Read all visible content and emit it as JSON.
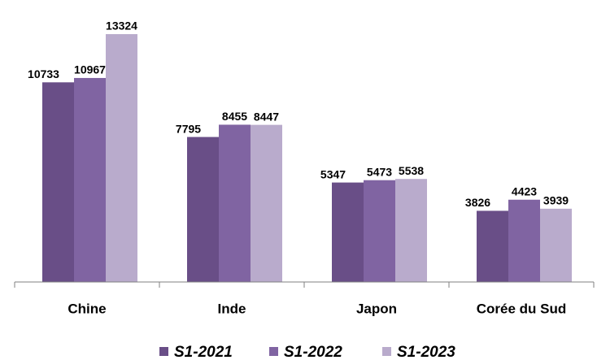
{
  "chart_data": {
    "type": "bar",
    "categories": [
      "Chine",
      "Inde",
      "Japon",
      "Corée du Sud"
    ],
    "series": [
      {
        "name": "S1-2021",
        "color": "#694e87",
        "values": [
          10733,
          7795,
          5347,
          3826
        ]
      },
      {
        "name": "S1-2022",
        "color": "#8064a2",
        "values": [
          10967,
          8455,
          5473,
          4423
        ]
      },
      {
        "name": "S1-2023",
        "color": "#b9abcc",
        "values": [
          13324,
          8447,
          5538,
          3939
        ]
      }
    ],
    "legend": "bottom"
  }
}
